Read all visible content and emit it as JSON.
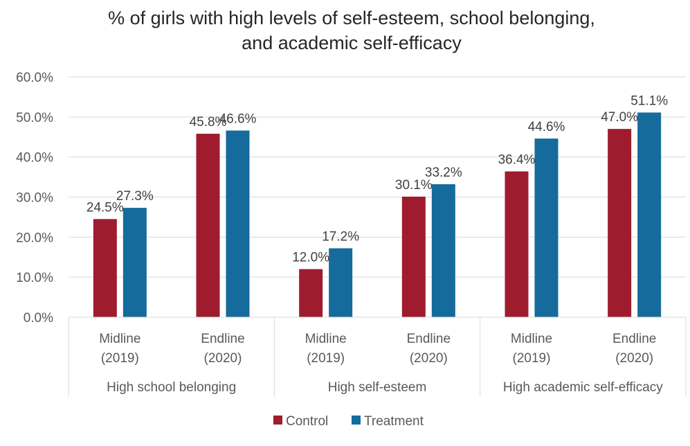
{
  "chart_data": {
    "type": "bar",
    "title_line1": "% of girls with high levels of self-esteem, school belonging,",
    "title_line2": "and academic self-efficacy",
    "groups": [
      {
        "label": "High school belonging",
        "categories": [
          {
            "line1": "Midline",
            "line2": "(2019)"
          },
          {
            "line1": "Endline",
            "line2": "(2020)"
          }
        ]
      },
      {
        "label": "High self-esteem",
        "categories": [
          {
            "line1": "Midline",
            "line2": "(2019)"
          },
          {
            "line1": "Endline",
            "line2": "(2020)"
          }
        ]
      },
      {
        "label": "High academic self-efficacy",
        "categories": [
          {
            "line1": "Midline",
            "line2": "(2019)"
          },
          {
            "line1": "Endline",
            "line2": "(2020)"
          }
        ]
      }
    ],
    "series": [
      {
        "name": "Control",
        "color": "#9e1c2e",
        "values": [
          24.5,
          45.8,
          12.0,
          30.1,
          36.4,
          47.0
        ],
        "labels": [
          "24.5%",
          "45.8%",
          "12.0%",
          "30.1%",
          "36.4%",
          "47.0%"
        ]
      },
      {
        "name": "Treatment",
        "color": "#156b9c",
        "values": [
          27.3,
          46.6,
          17.2,
          33.2,
          44.6,
          51.1
        ],
        "labels": [
          "27.3%",
          "46.6%",
          "17.2%",
          "33.2%",
          "44.6%",
          "51.1%"
        ]
      }
    ],
    "y_ticks": [
      "0.0%",
      "10.0%",
      "20.0%",
      "30.0%",
      "40.0%",
      "50.0%",
      "60.0%"
    ],
    "ylim": [
      0,
      60
    ],
    "grid": true,
    "legend_position": "bottom"
  }
}
